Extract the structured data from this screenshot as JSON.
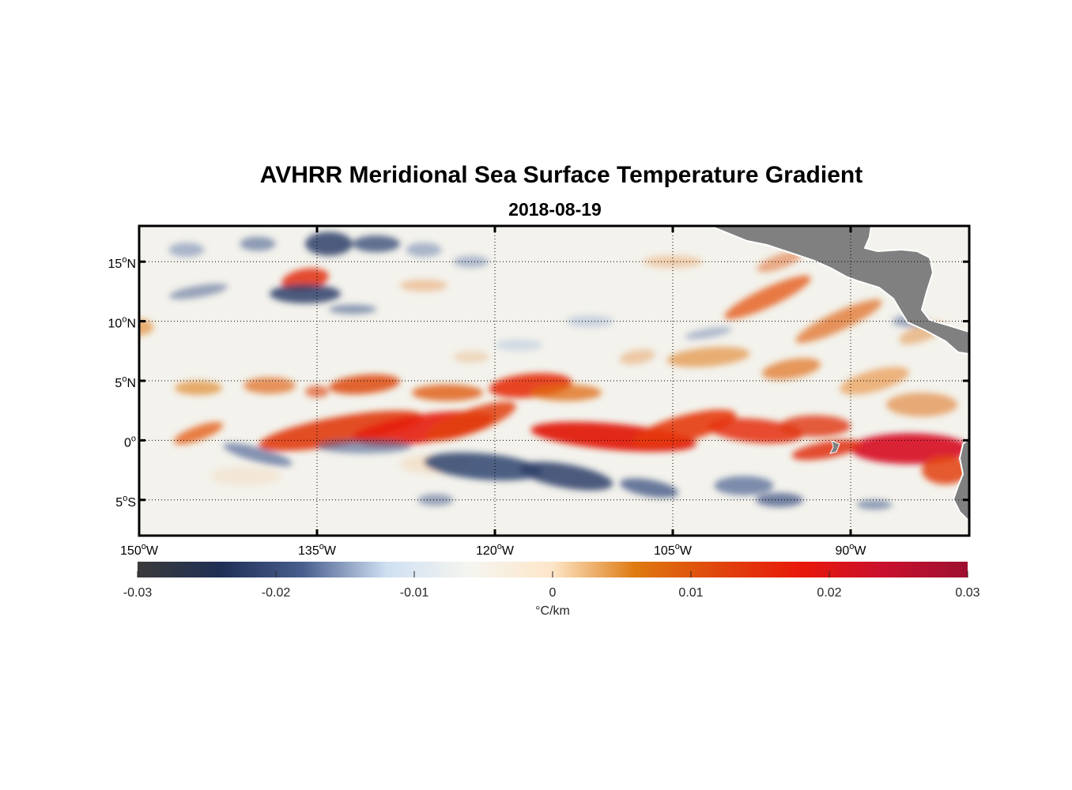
{
  "title": "AVHRR Meridional Sea Surface Temperature Gradient",
  "subtitle": "2018-08-19",
  "map": {
    "lon_range": [
      -150,
      -80
    ],
    "lat_range": [
      -8,
      18
    ],
    "lon_ticks": [
      {
        "value": -150,
        "num": "150",
        "hem": "W"
      },
      {
        "value": -135,
        "num": "135",
        "hem": "W"
      },
      {
        "value": -120,
        "num": "120",
        "hem": "W"
      },
      {
        "value": -105,
        "num": "105",
        "hem": "W"
      },
      {
        "value": -90,
        "num": "90",
        "hem": "W"
      }
    ],
    "lat_ticks": [
      {
        "value": 15,
        "num": "15",
        "hem": "N"
      },
      {
        "value": 10,
        "num": "10",
        "hem": "N"
      },
      {
        "value": 5,
        "num": "5",
        "hem": "N"
      },
      {
        "value": 0,
        "num": "0",
        "hem": ""
      },
      {
        "value": -5,
        "num": "5",
        "hem": "S"
      }
    ],
    "grid": true,
    "land_color": "#808080"
  },
  "colorbar": {
    "range": [
      -0.03,
      0.03
    ],
    "ticks": [
      {
        "value": -0.03,
        "label": "-0.03"
      },
      {
        "value": -0.02,
        "label": "-0.02"
      },
      {
        "value": -0.01,
        "label": "-0.01"
      },
      {
        "value": 0,
        "label": "0"
      },
      {
        "value": 0.01,
        "label": "0.01"
      },
      {
        "value": 0.02,
        "label": "0.02"
      },
      {
        "value": 0.03,
        "label": "0.03"
      }
    ],
    "unit_label": "°C/km",
    "colors": [
      "#3a3a3a",
      "#1f2f55",
      "#4a5f8f",
      "#cfe0f2",
      "#f5f5f0",
      "#fde6c8",
      "#de7a10",
      "#e0450c",
      "#e8180a",
      "#c8102e",
      "#9e1030"
    ]
  }
}
